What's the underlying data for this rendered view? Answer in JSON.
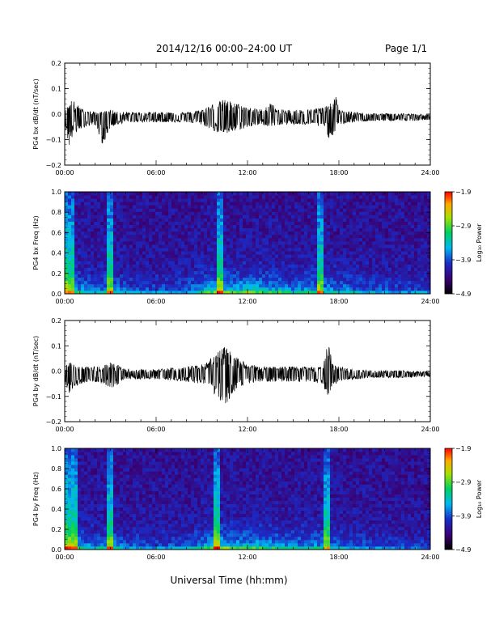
{
  "header": {
    "title": "2014/12/16  00:00–24:00 UT",
    "page": "Page 1/1"
  },
  "xaxis": {
    "label": "Universal Time (hh:mm)",
    "ticks": [
      "00:00",
      "06:00",
      "12:00",
      "18:00",
      "24:00"
    ],
    "range_hours": [
      0,
      24
    ]
  },
  "chart_data": [
    {
      "type": "line",
      "ylabel": "PG4 bx dB/dt (nT/sec)",
      "ylim": [
        -0.2,
        0.2
      ],
      "yticks": [
        "0.2",
        "0.1",
        "0.0",
        "−0.1",
        "−0.2"
      ],
      "ytick_values": [
        0.2,
        0.1,
        0.0,
        -0.1,
        -0.2
      ],
      "color": "#000000",
      "envelope": {
        "x_hours": [
          0,
          0.3,
          0.5,
          0.8,
          1.2,
          2,
          2.5,
          3,
          3.5,
          4,
          6,
          8,
          9,
          10,
          10.5,
          11,
          11.5,
          12,
          13,
          13.5,
          14,
          15,
          16,
          17,
          17.4,
          17.8,
          18,
          19,
          20,
          22,
          24
        ],
        "y_max": [
          0.02,
          0.06,
          0.07,
          0.05,
          0.03,
          0.02,
          0.02,
          0.03,
          0.02,
          0.02,
          0.02,
          0.02,
          0.03,
          0.06,
          0.07,
          0.06,
          0.05,
          0.04,
          0.03,
          0.06,
          0.03,
          0.03,
          0.03,
          0.04,
          0.05,
          0.09,
          0.03,
          0.02,
          0.015,
          0.015,
          0.01
        ],
        "y_min": [
          -0.03,
          -0.12,
          -0.08,
          -0.06,
          -0.04,
          -0.03,
          -0.11,
          -0.04,
          -0.03,
          -0.02,
          -0.02,
          -0.02,
          -0.03,
          -0.06,
          -0.07,
          -0.06,
          -0.05,
          -0.04,
          -0.03,
          -0.04,
          -0.03,
          -0.03,
          -0.03,
          -0.04,
          -0.09,
          -0.05,
          -0.03,
          -0.02,
          -0.015,
          -0.015,
          -0.01
        ]
      }
    },
    {
      "type": "heatmap",
      "ylabel": "PG4 bx Freq (Hz)",
      "ylim": [
        0.0,
        1.0
      ],
      "yticks": [
        "1.0",
        "0.8",
        "0.6",
        "0.4",
        "0.2",
        "0.0"
      ],
      "ytick_values": [
        1.0,
        0.8,
        0.6,
        0.4,
        0.2,
        0.0
      ],
      "colorbar": {
        "label": "Log₁₀ Power",
        "ticks": [
          "−1.9",
          "−2.9",
          "−3.9",
          "−4.9"
        ],
        "range": [
          -4.9,
          -1.9
        ]
      },
      "activity_hours": [
        0,
        1,
        2,
        3,
        4,
        6,
        8,
        9,
        10,
        11,
        12,
        13,
        14,
        15,
        16,
        17,
        18,
        20,
        22,
        24
      ],
      "activity_level": [
        0.5,
        0.45,
        0.3,
        0.45,
        0.3,
        0.25,
        0.3,
        0.45,
        0.6,
        0.55,
        0.6,
        0.55,
        0.5,
        0.4,
        0.45,
        0.45,
        0.4,
        0.3,
        0.25,
        0.25
      ],
      "spikes_hours": [
        0.3,
        0.5,
        3.0,
        10.1,
        16.8
      ]
    },
    {
      "type": "line",
      "ylabel": "PG4 by dB/dt (nT/sec)",
      "ylim": [
        -0.2,
        0.2
      ],
      "yticks": [
        "0.2",
        "0.1",
        "0.0",
        "−0.1",
        "−0.2"
      ],
      "ytick_values": [
        0.2,
        0.1,
        0.0,
        -0.1,
        -0.2
      ],
      "color": "#000000",
      "envelope": {
        "x_hours": [
          0,
          0.3,
          0.6,
          1,
          1.5,
          2,
          2.5,
          3,
          4,
          6,
          8,
          9,
          9.5,
          10,
          10.5,
          11,
          11.5,
          12,
          13,
          14,
          15,
          16,
          17,
          17.2,
          17.6,
          18,
          19,
          20,
          22,
          24
        ],
        "y_max": [
          0.03,
          0.05,
          0.04,
          0.03,
          0.03,
          0.03,
          0.03,
          0.05,
          0.02,
          0.02,
          0.03,
          0.04,
          0.06,
          0.09,
          0.11,
          0.09,
          0.06,
          0.04,
          0.03,
          0.03,
          0.03,
          0.03,
          0.03,
          0.16,
          0.04,
          0.03,
          0.02,
          0.015,
          0.015,
          0.01
        ],
        "y_min": [
          -0.03,
          -0.08,
          -0.05,
          -0.04,
          -0.03,
          -0.03,
          -0.04,
          -0.06,
          -0.02,
          -0.02,
          -0.03,
          -0.04,
          -0.06,
          -0.09,
          -0.13,
          -0.08,
          -0.05,
          -0.04,
          -0.03,
          -0.03,
          -0.03,
          -0.03,
          -0.04,
          -0.09,
          -0.05,
          -0.03,
          -0.02,
          -0.015,
          -0.015,
          -0.01
        ]
      }
    },
    {
      "type": "heatmap",
      "ylabel": "PG4 by Freq (Hz)",
      "ylim": [
        0.0,
        1.0
      ],
      "yticks": [
        "1.0",
        "0.8",
        "0.6",
        "0.4",
        "0.2",
        "0.0"
      ],
      "ytick_values": [
        1.0,
        0.8,
        0.6,
        0.4,
        0.2,
        0.0
      ],
      "colorbar": {
        "label": "Log₁₀ Power",
        "ticks": [
          "−1.9",
          "−2.9",
          "−3.9",
          "−4.9"
        ],
        "range": [
          -4.9,
          -1.9
        ]
      },
      "activity_hours": [
        0,
        1,
        2,
        3,
        4,
        6,
        8,
        9,
        10,
        11,
        12,
        13,
        14,
        15,
        16,
        17,
        18,
        20,
        22,
        24
      ],
      "activity_level": [
        0.55,
        0.45,
        0.35,
        0.45,
        0.3,
        0.25,
        0.3,
        0.45,
        0.65,
        0.55,
        0.55,
        0.5,
        0.45,
        0.4,
        0.45,
        0.4,
        0.35,
        0.25,
        0.2,
        0.2
      ],
      "spikes_hours": [
        0.3,
        0.6,
        3.0,
        10.0,
        17.2
      ]
    }
  ]
}
